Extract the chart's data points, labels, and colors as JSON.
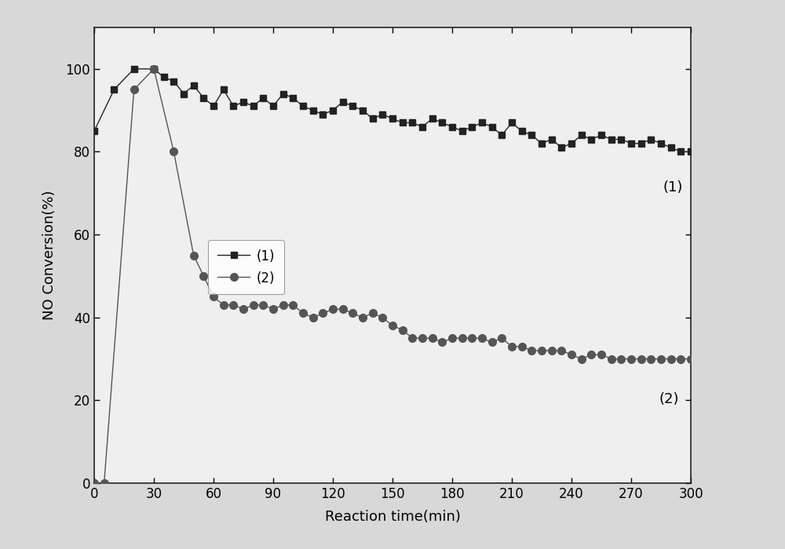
{
  "series1_x": [
    0,
    10,
    20,
    30,
    35,
    40,
    45,
    50,
    55,
    60,
    65,
    70,
    75,
    80,
    85,
    90,
    95,
    100,
    105,
    110,
    115,
    120,
    125,
    130,
    135,
    140,
    145,
    150,
    155,
    160,
    165,
    170,
    175,
    180,
    185,
    190,
    195,
    200,
    205,
    210,
    215,
    220,
    225,
    230,
    235,
    240,
    245,
    250,
    255,
    260,
    265,
    270,
    275,
    280,
    285,
    290,
    295,
    300
  ],
  "series1_y": [
    85,
    95,
    100,
    100,
    98,
    97,
    94,
    96,
    93,
    91,
    95,
    91,
    92,
    91,
    93,
    91,
    94,
    93,
    91,
    90,
    89,
    90,
    92,
    91,
    90,
    88,
    89,
    88,
    87,
    87,
    86,
    88,
    87,
    86,
    85,
    86,
    87,
    86,
    84,
    87,
    85,
    84,
    82,
    83,
    81,
    82,
    84,
    83,
    84,
    83,
    83,
    82,
    82,
    83,
    82,
    81,
    80,
    80
  ],
  "series2_x": [
    0,
    5,
    20,
    30,
    40,
    50,
    55,
    60,
    65,
    70,
    75,
    80,
    85,
    90,
    95,
    100,
    105,
    110,
    115,
    120,
    125,
    130,
    135,
    140,
    145,
    150,
    155,
    160,
    165,
    170,
    175,
    180,
    185,
    190,
    195,
    200,
    205,
    210,
    215,
    220,
    225,
    230,
    235,
    240,
    245,
    250,
    255,
    260,
    265,
    270,
    275,
    280,
    285,
    290,
    295,
    300
  ],
  "series2_y": [
    0,
    0,
    95,
    100,
    80,
    55,
    50,
    45,
    43,
    43,
    42,
    43,
    43,
    42,
    43,
    43,
    41,
    40,
    41,
    42,
    42,
    41,
    40,
    41,
    40,
    38,
    37,
    35,
    35,
    35,
    34,
    35,
    35,
    35,
    35,
    34,
    35,
    33,
    33,
    32,
    32,
    32,
    32,
    31,
    30,
    31,
    31,
    30,
    30,
    30,
    30,
    30,
    30,
    30,
    30,
    30
  ],
  "xlabel": "Reaction time(min)",
  "ylabel": "NO Conversion(%)",
  "xlim": [
    0,
    300
  ],
  "ylim": [
    0,
    110
  ],
  "xticks": [
    0,
    30,
    60,
    90,
    120,
    150,
    180,
    210,
    240,
    270,
    300
  ],
  "yticks": [
    0,
    20,
    40,
    60,
    80,
    100
  ],
  "label1": "(1)",
  "label2": "(2)",
  "line_color1": "#222222",
  "line_color2": "#555555",
  "marker1": "s",
  "marker2": "o",
  "bg_color": "#d8d8d8",
  "plot_bg_color": "#efefef",
  "annotation1": "(1)",
  "annotation2": "(2)",
  "ann1_x": 286,
  "ann1_y": 73,
  "ann2_x": 284,
  "ann2_y": 22
}
